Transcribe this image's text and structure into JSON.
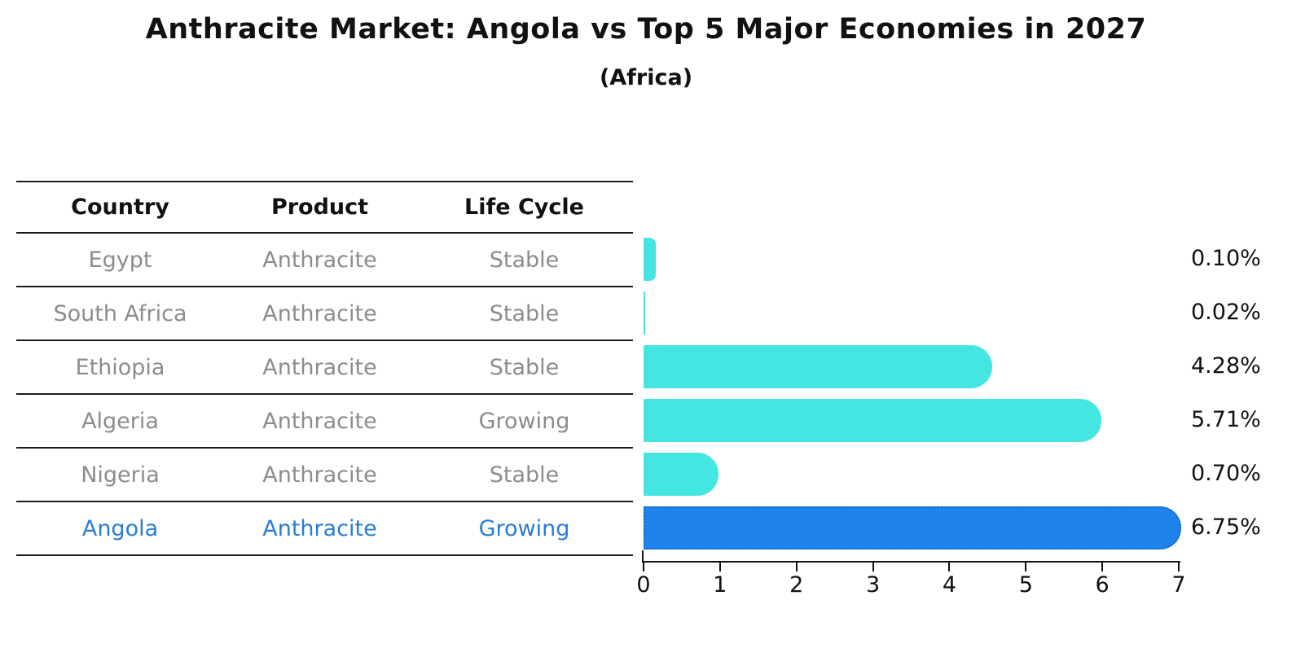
{
  "title": "Anthracite Market: Angola vs Top 5 Major Economies in 2027",
  "subtitle": "(Africa)",
  "table": {
    "headers": {
      "country": "Country",
      "product": "Product",
      "life_cycle": "Life Cycle"
    },
    "rows": [
      {
        "country": "Egypt",
        "product": "Anthracite",
        "life_cycle": "Stable",
        "highlighted": false
      },
      {
        "country": "South Africa",
        "product": "Anthracite",
        "life_cycle": "Stable",
        "highlighted": false
      },
      {
        "country": "Ethiopia",
        "product": "Anthracite",
        "life_cycle": "Stable",
        "highlighted": false
      },
      {
        "country": "Algeria",
        "product": "Anthracite",
        "life_cycle": "Growing",
        "highlighted": false
      },
      {
        "country": "Nigeria",
        "product": "Anthracite",
        "life_cycle": "Stable",
        "highlighted": false
      },
      {
        "country": "Angola",
        "product": "Anthracite",
        "life_cycle": "Growing",
        "highlighted": true
      }
    ]
  },
  "chart_data": {
    "type": "bar",
    "orientation": "horizontal",
    "title": "Anthracite Market: Angola vs Top 5 Major Economies in 2027",
    "subtitle": "(Africa)",
    "categories": [
      "Egypt",
      "South Africa",
      "Ethiopia",
      "Algeria",
      "Nigeria",
      "Angola"
    ],
    "values": [
      0.1,
      0.02,
      4.28,
      5.71,
      0.7,
      6.75
    ],
    "value_labels": [
      "0.10%",
      "0.02%",
      "4.28%",
      "5.71%",
      "0.70%",
      "6.75%"
    ],
    "xlabel": "",
    "ylabel": "",
    "xlim": [
      0,
      7
    ],
    "x_ticks": [
      "0",
      "1",
      "2",
      "3",
      "4",
      "5",
      "6",
      "7"
    ],
    "grid": false,
    "legend": false,
    "highlight_index": 5,
    "colors": {
      "bar": "#45e6e1",
      "highlight_bar": "#1f83ec",
      "highlight_bar_border": "#1565cc",
      "highlight_text": "#2a7cd4",
      "row_text": "#8c8c8c",
      "header_text": "#111111",
      "value_label_text": "#111111",
      "rule": "#1c1c1c"
    }
  }
}
